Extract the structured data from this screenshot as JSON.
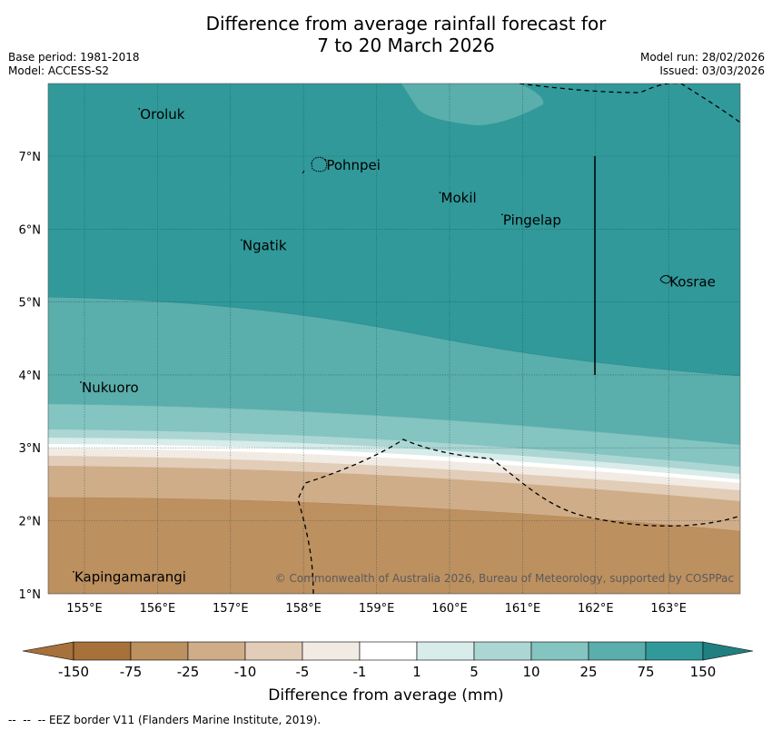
{
  "title": {
    "line1": "Difference from average rainfall forecast for",
    "line2": "7 to 20 March 2026"
  },
  "meta": {
    "base_period": "Base period: 1981-2018",
    "model": "Model: ACCESS-S2",
    "model_run": "Model run: 28/02/2026",
    "issued": "Issued: 03/03/2026"
  },
  "map": {
    "lon_ticks": [
      "155°E",
      "156°E",
      "157°E",
      "158°E",
      "159°E",
      "160°E",
      "161°E",
      "162°E",
      "163°E"
    ],
    "lat_ticks": [
      "7°N",
      "6°N",
      "5°N",
      "4°N",
      "3°N",
      "2°N",
      "1°N"
    ],
    "places": [
      {
        "name": "Oroluk",
        "lon": 155.75,
        "lat": 7.6
      },
      {
        "name": "Pohnpei",
        "lon": 158.3,
        "lat": 6.9
      },
      {
        "name": "Mokil",
        "lon": 159.87,
        "lat": 6.45
      },
      {
        "name": "Pingelap",
        "lon": 160.72,
        "lat": 6.15
      },
      {
        "name": "Ngatik",
        "lon": 157.15,
        "lat": 5.8
      },
      {
        "name": "Kosrae",
        "lon": 163.0,
        "lat": 5.3
      },
      {
        "name": "Nukuoro",
        "lon": 154.95,
        "lat": 3.85
      },
      {
        "name": "Kapingamarangi",
        "lon": 154.85,
        "lat": 1.25
      }
    ],
    "copyright": "© Commonwealth of Australia 2026, Bureau of Meteorology, supported by COSPPac"
  },
  "colorbar": {
    "labels": [
      "-150",
      "-75",
      "-25",
      "-10",
      "-5",
      "-1",
      "1",
      "5",
      "10",
      "25",
      "75",
      "150"
    ],
    "colors": [
      "#a6713a",
      "#bd9060",
      "#d0ad89",
      "#e2cdb8",
      "#f1ebe4",
      "#ffffff",
      "#d8ecea",
      "#acd6d4",
      "#84c4c1",
      "#5aaeac",
      "#31999a",
      "#217f80"
    ],
    "axis_label": "Difference from average (mm)"
  },
  "footer": {
    "legend_text": "--  --  -- EEZ border V11 (Flanders Marine Institute, 2019)."
  }
}
